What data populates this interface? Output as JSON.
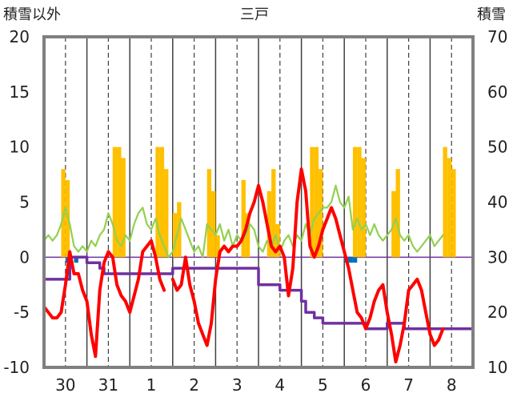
{
  "chart_data": {
    "type": "line",
    "title": "三戸",
    "left_axis_label": "積雪以外",
    "right_axis_label": "積雪",
    "y_left": {
      "min": -10,
      "max": 20,
      "ticks": [
        20,
        15,
        10,
        5,
        0,
        -5,
        -10
      ]
    },
    "y_right": {
      "min": 10,
      "max": 70,
      "ticks": [
        70,
        60,
        50,
        40,
        30,
        20,
        10
      ]
    },
    "x": {
      "min": 0,
      "max": 10,
      "day_labels": [
        "30",
        "31",
        "1",
        "2",
        "3",
        "4",
        "5",
        "6",
        "7",
        "8"
      ],
      "label_positions": [
        0.5,
        1.5,
        2.5,
        3.5,
        4.5,
        5.5,
        6.5,
        7.5,
        8.5,
        9.5
      ],
      "solid_gridlines": [
        1,
        2,
        3,
        4,
        5,
        6,
        7,
        8,
        9
      ],
      "dashed_gridlines": [
        0.5,
        1.5,
        2.5,
        3.5,
        4.5,
        5.5,
        6.5,
        7.5,
        8.5,
        9.5
      ]
    },
    "colors": {
      "temperature": "#ff0000",
      "wind": "#92d050",
      "precipitation": "#ffc000",
      "snow_depth": "#7030a0",
      "below_zero_bar": "#0070c0",
      "zero_line": "#7030a0",
      "gridline": "#404040",
      "frame": "#808080"
    },
    "series": [
      {
        "key": "temperature",
        "axis": "left",
        "style": "line",
        "x": [
          0.0,
          0.1,
          0.2,
          0.3,
          0.4,
          0.5,
          0.6,
          0.7,
          0.8,
          0.9,
          1.0,
          1.1,
          1.2,
          1.3,
          1.4,
          1.5,
          1.6,
          1.7,
          1.8,
          1.9,
          2.0,
          2.1,
          2.2,
          2.3,
          2.4,
          2.5,
          2.6,
          2.7,
          2.8,
          2.9,
          3.0,
          3.1,
          3.2,
          3.3,
          3.4,
          3.5,
          3.6,
          3.7,
          3.8,
          3.9,
          4.0,
          4.1,
          4.2,
          4.3,
          4.4,
          4.5,
          4.6,
          4.7,
          4.8,
          4.9,
          5.0,
          5.1,
          5.2,
          5.3,
          5.4,
          5.5,
          5.6,
          5.7,
          5.8,
          5.9,
          6.0,
          6.1,
          6.2,
          6.3,
          6.4,
          6.5,
          6.6,
          6.7,
          6.8,
          6.9,
          7.0,
          7.1,
          7.2,
          7.3,
          7.4,
          7.5,
          7.6,
          7.7,
          7.8,
          7.9,
          8.0,
          8.1,
          8.2,
          8.3,
          8.4,
          8.5,
          8.6,
          8.7,
          8.8,
          8.9,
          9.0,
          9.1,
          9.2,
          9.3,
          9.4,
          9.5,
          9.6,
          9.7,
          9.8,
          9.9,
          10.0
        ],
        "values": [
          -4.5,
          -5.0,
          -5.5,
          -5.5,
          -5.0,
          -2.5,
          0.5,
          -1.5,
          -1.5,
          -3.0,
          -4.0,
          -7.0,
          -9.0,
          -3.0,
          -0.5,
          0.5,
          0.0,
          -2.5,
          -3.5,
          -4.0,
          -5.0,
          -3.5,
          -2.0,
          0.5,
          1.0,
          1.5,
          0.0,
          -2.0,
          -3.0,
          null,
          -2.0,
          -3.0,
          -2.5,
          0.0,
          -2.5,
          -4.0,
          -6.0,
          -7.0,
          -8.0,
          -6.0,
          -2.0,
          0.5,
          1.0,
          0.5,
          1.0,
          1.0,
          1.5,
          2.5,
          4.0,
          5.0,
          6.5,
          5.0,
          3.0,
          1.0,
          0.5,
          1.0,
          0.0,
          -3.5,
          -1.0,
          5.0,
          8.0,
          6.0,
          1.0,
          0.0,
          1.0,
          2.5,
          3.5,
          4.5,
          3.5,
          2.0,
          0.5,
          -1.0,
          -3.0,
          -5.0,
          -5.5,
          -6.5,
          -5.5,
          -4.0,
          -3.0,
          -2.5,
          -5.0,
          -7.0,
          -9.5,
          -8.0,
          -6.0,
          -3.0,
          -2.5,
          -2.0,
          -3.0,
          -5.0,
          -7.0,
          -8.0,
          -7.5,
          -6.5,
          null,
          null,
          null,
          null,
          null,
          null,
          null
        ]
      },
      {
        "key": "wind",
        "axis": "left",
        "style": "line",
        "x": [
          0.0,
          0.1,
          0.2,
          0.3,
          0.4,
          0.5,
          0.6,
          0.7,
          0.8,
          0.9,
          1.0,
          1.1,
          1.2,
          1.3,
          1.4,
          1.5,
          1.6,
          1.7,
          1.8,
          1.9,
          2.0,
          2.1,
          2.2,
          2.3,
          2.4,
          2.5,
          2.6,
          2.7,
          2.8,
          2.9,
          3.0,
          3.1,
          3.2,
          3.3,
          3.4,
          3.5,
          3.6,
          3.7,
          3.8,
          3.9,
          4.0,
          4.1,
          4.2,
          4.3,
          4.4,
          4.5,
          4.6,
          4.7,
          4.8,
          4.9,
          5.0,
          5.1,
          5.2,
          5.3,
          5.4,
          5.5,
          5.6,
          5.7,
          5.8,
          5.9,
          6.0,
          6.1,
          6.2,
          6.3,
          6.4,
          6.5,
          6.6,
          6.7,
          6.8,
          6.9,
          7.0,
          7.1,
          7.2,
          7.3,
          7.4,
          7.5,
          7.6,
          7.7,
          7.8,
          7.9,
          8.0,
          8.1,
          8.2,
          8.3,
          8.4,
          8.5,
          8.6,
          8.7,
          8.8,
          8.9,
          9.0,
          9.1,
          9.2,
          9.3,
          9.4,
          9.5,
          9.6,
          9.7,
          9.8,
          9.9,
          10.0
        ],
        "values": [
          1.5,
          2.0,
          1.5,
          2.0,
          3.0,
          4.5,
          3.0,
          1.0,
          0.5,
          1.0,
          0.5,
          1.5,
          1.0,
          2.0,
          2.5,
          4.0,
          3.0,
          1.5,
          1.0,
          2.0,
          1.5,
          3.0,
          4.0,
          4.5,
          3.0,
          2.5,
          3.5,
          2.0,
          1.0,
          0.0,
          0.5,
          2.0,
          3.5,
          2.5,
          1.5,
          0.5,
          1.0,
          0.0,
          3.0,
          2.5,
          2.0,
          3.0,
          1.5,
          2.5,
          1.0,
          2.0,
          1.5,
          2.0,
          3.0,
          2.5,
          1.0,
          0.5,
          1.5,
          1.0,
          2.0,
          0.5,
          1.5,
          2.0,
          1.0,
          2.0,
          1.5,
          3.0,
          2.0,
          3.5,
          4.0,
          4.5,
          4.5,
          5.0,
          6.5,
          5.0,
          4.5,
          5.5,
          2.5,
          3.5,
          2.5,
          3.0,
          2.0,
          3.0,
          2.0,
          1.5,
          2.0,
          2.5,
          3.5,
          2.0,
          1.5,
          2.0,
          1.0,
          0.5,
          1.0,
          1.5,
          2.0,
          1.0,
          1.5,
          2.0,
          null,
          null,
          null,
          null,
          null,
          null,
          null
        ]
      },
      {
        "key": "snow_depth",
        "axis": "right",
        "style": "step",
        "x": [
          0.0,
          0.5,
          0.6,
          1.0,
          1.1,
          1.3,
          1.4,
          1.5,
          1.6,
          2.0,
          2.2,
          2.5,
          2.6,
          3.0,
          3.5,
          3.8,
          4.0,
          4.5,
          5.0,
          5.5,
          6.0,
          6.1,
          6.3,
          6.5,
          6.8,
          7.0,
          7.5,
          7.6,
          7.9,
          8.0,
          8.2,
          8.3,
          8.4,
          8.6,
          8.9,
          9.0,
          9.5,
          10.0
        ],
        "values": [
          26,
          26,
          30,
          29,
          29,
          28,
          27,
          27,
          27,
          27,
          27,
          27,
          27,
          28,
          28,
          28,
          28,
          28,
          25,
          24,
          22,
          20,
          19,
          18,
          18,
          18,
          17,
          17,
          17,
          18,
          18,
          18,
          17,
          17,
          17,
          17,
          17,
          18
        ]
      },
      {
        "key": "precipitation",
        "axis": "left",
        "style": "bar",
        "x": [
          0.4,
          0.5,
          1.6,
          1.7,
          1.8,
          2.6,
          2.7,
          2.8,
          3.0,
          3.1,
          3.8,
          3.9,
          4.0,
          4.6,
          4.7,
          5.2,
          5.3,
          5.4,
          6.2,
          6.3,
          6.4,
          7.2,
          7.3,
          7.4,
          8.1,
          8.2,
          9.3,
          9.4,
          9.5
        ],
        "values": [
          8,
          7,
          10,
          10,
          9,
          10,
          10,
          8,
          4,
          5,
          8,
          6,
          2,
          7,
          4,
          6,
          8,
          3,
          10,
          10,
          8,
          10,
          10,
          9,
          6,
          8,
          10,
          9,
          8
        ]
      },
      {
        "key": "below_zero_bar",
        "axis": "left",
        "style": "bar",
        "x": [
          0.5,
          0.7,
          7.0,
          7.1,
          7.2
        ],
        "values": [
          -0.5,
          -0.5,
          -0.5,
          -0.5,
          -0.5
        ]
      }
    ]
  }
}
